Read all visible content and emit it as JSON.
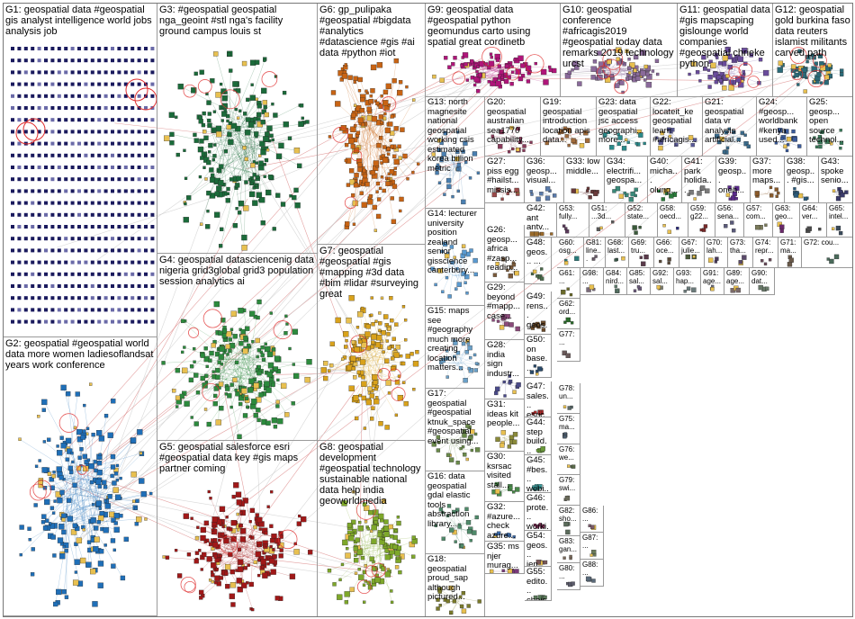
{
  "graph": {
    "groups": [
      {
        "id": "G1",
        "label": "G1: geospatial data #geospatial gis analyst intelligence world jobs analysis job",
        "color": "#1a1a5e"
      },
      {
        "id": "G2",
        "label": "G2: geospatial #geospatial world data more women ladiesoflandsat years work conference",
        "color": "#1f6fb8"
      },
      {
        "id": "G3",
        "label": "G3: #geospatial geospatial nga_geoint #stl nga's facility ground campus louis st",
        "color": "#1b6b3a"
      },
      {
        "id": "G4",
        "label": "G4: geospatial datasciencenig data nigeria grid3global grid3 population session analytics ai",
        "color": "#2c8a3d"
      },
      {
        "id": "G5",
        "label": "G5: geospatial salesforce esri #geospatial data key #gis maps partner coming",
        "color": "#a01818"
      },
      {
        "id": "G6",
        "label": "G6: gp_pulipaka #geospatial #bigdata #analytics #datascience #gis #ai data #python #iot",
        "color": "#c86414"
      },
      {
        "id": "G7",
        "label": "G7: geospatial #geospatial #gis #mapping #3d data #bim #lidar #surveying great",
        "color": "#d9a21b"
      },
      {
        "id": "G8",
        "label": "G8: geospatial development #geospatial technology sustainable national data help india geoworldmedia",
        "color": "#7ea82a"
      },
      {
        "id": "G9",
        "label": "G9: geospatial data #geospatial python geomundus carto using spatial great cordinetb",
        "color": "#b0157a"
      },
      {
        "id": "G10",
        "label": "G10: geospatial conference #africagis2019 #geospatial today data remarks 2019 technology urcst",
        "color": "#8a6a9a"
      },
      {
        "id": "G11",
        "label": "G11: geospatial data #gis mapscaping gislounge world companies #geospatial chrieke python",
        "color": "#6a4c9c"
      },
      {
        "id": "G12",
        "label": "G12: geospatial gold burkina faso data reuters islamist militants carved path",
        "color": "#2a6a78"
      },
      {
        "id": "G13",
        "label": "G13: north magnesite national geospatial working csis estimated korea billion metric",
        "color": "#4a7fb0"
      },
      {
        "id": "G14",
        "label": "G14: lecturer university position zealand senior gisscience canterbury...",
        "color": "#5a9ad0"
      },
      {
        "id": "G15",
        "label": "G15: maps see #geography much more creating location matters...",
        "color": "#6aa0c8"
      },
      {
        "id": "G16",
        "label": "G16: data geospatial gdal elastic tools abstraction library...",
        "color": "#4f8a6a"
      },
      {
        "id": "G17",
        "label": "G17: geospatial #geospatial ktnuk_space #geospatial event using...",
        "color": "#6a8a4a"
      },
      {
        "id": "G18",
        "label": "G18: geospatial proud_sap although pictured...",
        "color": "#7a7a2a"
      },
      {
        "id": "G19",
        "label": "G19: geospatial introduction location apis data...",
        "color": "#a06a3a"
      },
      {
        "id": "G20",
        "label": "G20: geospatial australian sea1770 capability...",
        "color": "#8a3a5a"
      },
      {
        "id": "G21",
        "label": "G21: geospatial data vr analysis artificial...",
        "color": "#3a6a8a"
      },
      {
        "id": "G22",
        "label": "G22: locateit_ke geospatial learn #africagis...",
        "color": "#5a5a9a"
      },
      {
        "id": "G23",
        "label": "G23: data geospatial jsc access geographi... more...",
        "color": "#2a8a8a"
      },
      {
        "id": "G24",
        "label": "G24: #geosp... worldbank #kenya used...",
        "color": "#3a5a9a"
      },
      {
        "id": "G25",
        "label": "G25: geosp... open source technol...",
        "color": "#3a7a5a"
      },
      {
        "id": "G26",
        "label": "G26: geosp... africa #zasp... readin...",
        "color": "#7a5a3a"
      },
      {
        "id": "G27",
        "label": "G27: piss egg #hailst... missis...",
        "color": "#9a4a4a"
      },
      {
        "id": "G28",
        "label": "G28: india sign industr...",
        "color": "#4a4a8a"
      },
      {
        "id": "G29",
        "label": "G29: beyond #mapp... case...",
        "color": "#8a4a7a"
      },
      {
        "id": "G30",
        "label": "G30: ksrsac visited stall...",
        "color": "#4a8a4a"
      },
      {
        "id": "G31",
        "label": "G31: ideas kit people...",
        "color": "#8a8a3a"
      },
      {
        "id": "G32",
        "label": "G32: #azure... check azure...",
        "color": "#3a6aaa"
      },
      {
        "id": "G33",
        "label": "G33: low middle...",
        "color": "#6a3a3a"
      },
      {
        "id": "G34",
        "label": "G34: electrifi... geospa...",
        "color": "#3a8a7a"
      },
      {
        "id": "G35",
        "label": "G35: ms njer murag...",
        "color": "#7a3a7a"
      },
      {
        "id": "G36",
        "label": "G36: geosp... visual...",
        "color": "#5a7aaa"
      },
      {
        "id": "G37",
        "label": "G37: more maps...",
        "color": "#8a5a2a"
      },
      {
        "id": "G38",
        "label": "G38: geosp... #gis...",
        "color": "#2a5a7a"
      },
      {
        "id": "G39",
        "label": "G39: geosp... oneh...",
        "color": "#5a2a8a"
      },
      {
        "id": "G40",
        "label": "G40: micha... olung...",
        "color": "#2a7a3a"
      },
      {
        "id": "G41",
        "label": "G41: park holida...",
        "color": "#7a7a7a"
      },
      {
        "id": "G42",
        "label": "G42: ant antv...",
        "color": "#9a6a2a"
      },
      {
        "id": "G43",
        "label": "G43: spoke senio...",
        "color": "#3a3a6a"
      },
      {
        "id": "G44",
        "label": "G44: step build...",
        "color": "#6a9a3a"
      },
      {
        "id": "G45",
        "label": "G45: #bes... webi...",
        "color": "#3a9a9a"
      },
      {
        "id": "G46",
        "label": "G46: prote... worki...",
        "color": "#9a3a6a"
      },
      {
        "id": "G47",
        "label": "G47: sales... esric...",
        "color": "#aa2a2a"
      },
      {
        "id": "G48",
        "label": "G48: geos... ...",
        "color": "#4a6a4a"
      },
      {
        "id": "G49",
        "label": "G49: rens... geos...",
        "color": "#6a4a2a"
      },
      {
        "id": "G50",
        "label": "G50: on base...",
        "color": "#2a4a6a"
      },
      {
        "id": "G51",
        "label": "G51: ...3d...",
        "color": "#5a5a5a"
      },
      {
        "id": "G52",
        "label": "G52: state...",
        "color": "#3a5a3a"
      },
      {
        "id": "G53",
        "label": "G53: fully...",
        "color": "#5a3a5a"
      },
      {
        "id": "G54",
        "label": "G54: geos... jen...",
        "color": "#7a5a5a"
      },
      {
        "id": "G55",
        "label": "G55: edito... choic...",
        "color": "#5a7a5a"
      },
      {
        "id": "G56",
        "label": "G56: sena...",
        "color": "#5a5a7a"
      },
      {
        "id": "G57",
        "label": "G57: com...",
        "color": "#7a7a5a"
      },
      {
        "id": "G58",
        "label": "G58: oecd...",
        "color": "#2a2a7a"
      },
      {
        "id": "G59",
        "label": "G59: g22...",
        "color": "#7a2a2a"
      },
      {
        "id": "G60",
        "label": "G60: osg...",
        "color": "#2a7a7a"
      },
      {
        "id": "G61",
        "label": "G61: ...",
        "color": "#6a6a2a"
      },
      {
        "id": "G62",
        "label": "G62: ord...",
        "color": "#2a6a2a"
      },
      {
        "id": "G63",
        "label": "G63: geo...",
        "color": "#6a2a6a"
      },
      {
        "id": "G64",
        "label": "G64: ver...",
        "color": "#4a4a4a"
      },
      {
        "id": "G65",
        "label": "G65: intel...",
        "color": "#3a4a5a"
      },
      {
        "id": "G66",
        "label": "G66: oce...",
        "color": "#5a4a3a"
      },
      {
        "id": "G67",
        "label": "G67: julie...",
        "color": "#4a5a3a"
      },
      {
        "id": "G68",
        "label": "G68: last...",
        "color": "#3a5a4a"
      },
      {
        "id": "G69",
        "label": "G69: tru...",
        "color": "#5a3a4a"
      },
      {
        "id": "G70",
        "label": "G70: lah...",
        "color": "#4a3a5a"
      },
      {
        "id": "G71",
        "label": "G71: ma...",
        "color": "#6a5a4a"
      },
      {
        "id": "G72",
        "label": "G72: cou...",
        "color": "#4a6a5a"
      },
      {
        "id": "G73",
        "label": "G73: tha...",
        "color": "#5a4a6a"
      },
      {
        "id": "G74",
        "label": "G74: repr...",
        "color": "#6a4a5a"
      },
      {
        "id": "G75",
        "label": "G75: ma...",
        "color": "#4a5a6a"
      },
      {
        "id": "G76",
        "label": "G76: we...",
        "color": "#5a6a4a"
      },
      {
        "id": "G77",
        "label": "G77: ...",
        "color": "#6a5a5a"
      },
      {
        "id": "G78",
        "label": "G78: un...",
        "color": "#5a6a6a"
      },
      {
        "id": "G79",
        "label": "G79: swi...",
        "color": "#6a6a5a"
      },
      {
        "id": "G80",
        "label": "G80: ...",
        "color": "#5a5a6a"
      },
      {
        "id": "G81",
        "label": "G81: line...",
        "color": "#6a5a6a"
      },
      {
        "id": "G82",
        "label": "G82: sho...",
        "color": "#5a6a5a"
      },
      {
        "id": "G83",
        "label": "G83: gan...",
        "color": "#7a6a5a"
      },
      {
        "id": "G84",
        "label": "G84: nird...",
        "color": "#5a7a6a"
      },
      {
        "id": "G85",
        "label": "G85: sal...",
        "color": "#6a5a7a"
      },
      {
        "id": "G86",
        "label": "G86: ...",
        "color": "#7a5a6a"
      },
      {
        "id": "G87",
        "label": "G87: ...",
        "color": "#6a7a5a"
      },
      {
        "id": "G88",
        "label": "G88: ...",
        "color": "#5a6a7a"
      },
      {
        "id": "G89",
        "label": "G89: age...",
        "color": "#7a6a6a"
      },
      {
        "id": "G90",
        "label": "G90: dat...",
        "color": "#6a7a6a"
      },
      {
        "id": "G91",
        "label": "G91: age...",
        "color": "#6a6a7a"
      },
      {
        "id": "G92",
        "label": "G92: sal...",
        "color": "#7a7a6a"
      },
      {
        "id": "G93",
        "label": "G93: hap...",
        "color": "#6a7a7a"
      },
      {
        "id": "G98",
        "label": "G98: ...",
        "color": "#7a6a7a"
      }
    ]
  }
}
